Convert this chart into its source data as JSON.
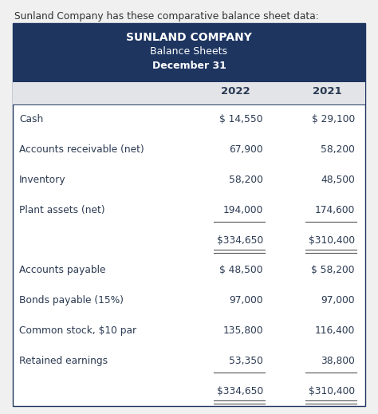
{
  "intro_text": "Sunland Company has these comparative balance sheet data:",
  "header_title1": "SUNLAND COMPANY",
  "header_title2": "Balance Sheets",
  "header_title3": "December 31",
  "header_bg": "#1e3560",
  "header_text_color": "#ffffff",
  "subheader_bg": "#e2e4e8",
  "col_2022": "2022",
  "col_2021": "2021",
  "rows": [
    {
      "label": "Cash",
      "v2022": "$ 14,550",
      "v2021": "$ 29,100",
      "single_ul": false,
      "double_ul": false
    },
    {
      "label": "Accounts receivable (net)",
      "v2022": "67,900",
      "v2021": "58,200",
      "single_ul": false,
      "double_ul": false
    },
    {
      "label": "Inventory",
      "v2022": "58,200",
      "v2021": "48,500",
      "single_ul": false,
      "double_ul": false
    },
    {
      "label": "Plant assets (net)",
      "v2022": "194,000",
      "v2021": "174,600",
      "single_ul": true,
      "double_ul": false
    },
    {
      "label": "",
      "v2022": "$334,650",
      "v2021": "$310,400",
      "single_ul": false,
      "double_ul": true
    },
    {
      "label": "Accounts payable",
      "v2022": "$ 48,500",
      "v2021": "$ 58,200",
      "single_ul": false,
      "double_ul": false
    },
    {
      "label": "Bonds payable (15%)",
      "v2022": "97,000",
      "v2021": "97,000",
      "single_ul": false,
      "double_ul": false
    },
    {
      "label": "Common stock, $10 par",
      "v2022": "135,800",
      "v2021": "116,400",
      "single_ul": false,
      "double_ul": false
    },
    {
      "label": "Retained earnings",
      "v2022": "53,350",
      "v2021": "38,800",
      "single_ul": true,
      "double_ul": false
    },
    {
      "label": "",
      "v2022": "$334,650",
      "v2021": "$310,400",
      "single_ul": false,
      "double_ul": true
    }
  ],
  "table_border_color": "#1e3560",
  "line_color": "#555555",
  "text_color": "#2b3a52",
  "bg_color": "#ffffff",
  "outer_bg": "#f0f0f0",
  "intro_color": "#333333"
}
